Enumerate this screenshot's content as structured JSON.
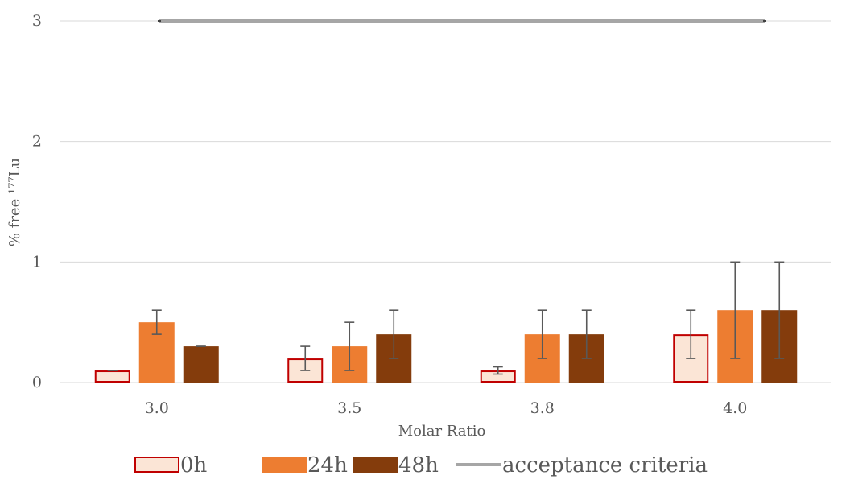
{
  "chart_data": {
    "type": "bar",
    "categories": [
      "3.0",
      "3.5",
      "3.8",
      "4.0"
    ],
    "xlabel": "Molar Ratio",
    "ylabel": "% free ¹⁷⁷Lu",
    "ylim": [
      0,
      3
    ],
    "y_ticks": [
      "0",
      "1",
      "2",
      "3"
    ],
    "grid": true,
    "legend_position": "bottom",
    "series": [
      {
        "name": "0h",
        "values": [
          0.1,
          0.2,
          0.1,
          0.4
        ],
        "error_low": [
          0.1,
          0.1,
          0.07,
          0.2
        ],
        "error_high": [
          0.1,
          0.3,
          0.13,
          0.6
        ],
        "fill": "#FBE5D6",
        "stroke": "#C00000"
      },
      {
        "name": "24h",
        "values": [
          0.5,
          0.3,
          0.4,
          0.6
        ],
        "error_low": [
          0.4,
          0.1,
          0.2,
          0.2
        ],
        "error_high": [
          0.6,
          0.5,
          0.6,
          1.0
        ],
        "fill": "#ED7D31",
        "stroke": "#ED7D31"
      },
      {
        "name": "48h",
        "values": [
          0.3,
          0.4,
          0.4,
          0.6
        ],
        "error_low": [
          0.3,
          0.2,
          0.2,
          0.2
        ],
        "error_high": [
          0.3,
          0.6,
          0.6,
          1.0
        ],
        "fill": "#843C0C",
        "stroke": "#843C0C"
      }
    ],
    "reference_line": {
      "name": "acceptance criteria",
      "value": 3,
      "color": "#A6A6A6"
    }
  }
}
